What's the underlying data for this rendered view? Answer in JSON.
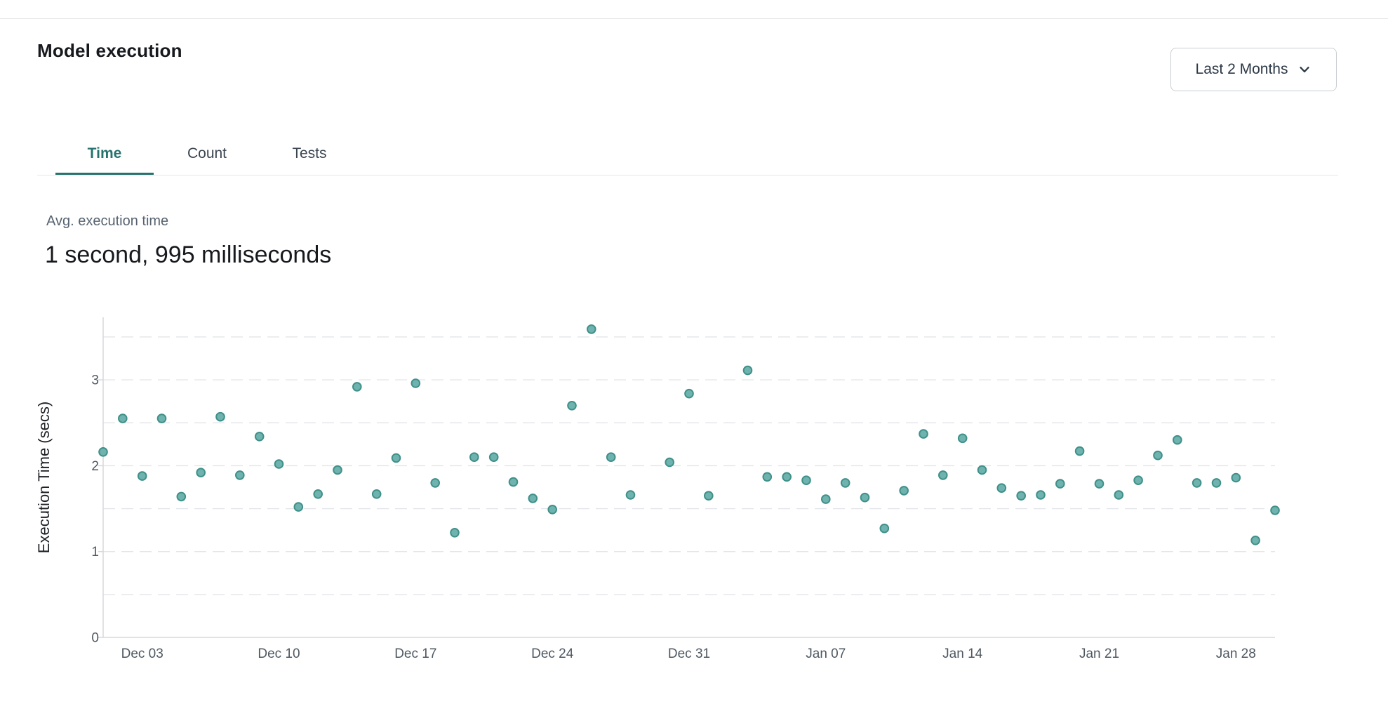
{
  "page": {
    "title": "Model execution"
  },
  "controls": {
    "range_button": {
      "label": "Last 2 Months",
      "icon": "chevron-down"
    }
  },
  "tabs": [
    {
      "label": "Time",
      "active": true
    },
    {
      "label": "Count",
      "active": false
    },
    {
      "label": "Tests",
      "active": false
    }
  ],
  "stats": {
    "label": "Avg. execution time",
    "value": "1 second, 995 milliseconds"
  },
  "colors": {
    "accent": "#26736e",
    "point_fill": "#6fb3af",
    "point_stroke": "#3f908a",
    "grid": "#e4e5ea",
    "axis": "#d7d8dc",
    "text_primary": "#16191d",
    "text_secondary": "#566370",
    "text_tick": "#4e5862",
    "text_tab": "#3a4550",
    "text_dark": "#2b3845",
    "border_light": "#e7e7e8",
    "border_btn": "#c9ced3"
  },
  "chart_data": {
    "type": "scatter",
    "title": "",
    "xlabel": "",
    "ylabel": "Execution Time (secs)",
    "ylim": [
      0,
      3.7
    ],
    "yticks": [
      0,
      1,
      2,
      3
    ],
    "grid_values": [
      0.5,
      1,
      1.5,
      2,
      2.5,
      3,
      3.5
    ],
    "grid": "dashed",
    "legend": "none",
    "x_tick_labels": [
      "Dec 03",
      "Dec 10",
      "Dec 17",
      "Dec 24",
      "Dec 31",
      "Jan 07",
      "Jan 14",
      "Jan 21",
      "Jan 28"
    ],
    "points": [
      {
        "date": "Dec 01",
        "value": 2.16
      },
      {
        "date": "Dec 02",
        "value": 2.55
      },
      {
        "date": "Dec 03",
        "value": 1.88
      },
      {
        "date": "Dec 04",
        "value": 2.55
      },
      {
        "date": "Dec 05",
        "value": 1.64
      },
      {
        "date": "Dec 06",
        "value": 1.92
      },
      {
        "date": "Dec 07",
        "value": 2.57
      },
      {
        "date": "Dec 08",
        "value": 1.89
      },
      {
        "date": "Dec 09",
        "value": 2.34
      },
      {
        "date": "Dec 10",
        "value": 2.02
      },
      {
        "date": "Dec 11",
        "value": 1.52
      },
      {
        "date": "Dec 12",
        "value": 1.67
      },
      {
        "date": "Dec 13",
        "value": 1.95
      },
      {
        "date": "Dec 14",
        "value": 2.92
      },
      {
        "date": "Dec 15",
        "value": 1.67
      },
      {
        "date": "Dec 16",
        "value": 2.09
      },
      {
        "date": "Dec 17",
        "value": 2.96
      },
      {
        "date": "Dec 18",
        "value": 1.8
      },
      {
        "date": "Dec 19",
        "value": 1.22
      },
      {
        "date": "Dec 20",
        "value": 2.1
      },
      {
        "date": "Dec 21",
        "value": 2.1
      },
      {
        "date": "Dec 22",
        "value": 1.81
      },
      {
        "date": "Dec 23",
        "value": 1.62
      },
      {
        "date": "Dec 24",
        "value": 1.49
      },
      {
        "date": "Dec 25",
        "value": 2.7
      },
      {
        "date": "Dec 26",
        "value": 3.59
      },
      {
        "date": "Dec 27",
        "value": 2.1
      },
      {
        "date": "Dec 28",
        "value": 1.66
      },
      {
        "date": "Dec 30",
        "value": 2.04
      },
      {
        "date": "Dec 31",
        "value": 2.84
      },
      {
        "date": "Jan 01",
        "value": 1.65
      },
      {
        "date": "Jan 03",
        "value": 3.11
      },
      {
        "date": "Jan 04",
        "value": 1.87
      },
      {
        "date": "Jan 05",
        "value": 1.87
      },
      {
        "date": "Jan 06",
        "value": 1.83
      },
      {
        "date": "Jan 07",
        "value": 1.61
      },
      {
        "date": "Jan 08",
        "value": 1.8
      },
      {
        "date": "Jan 09",
        "value": 1.63
      },
      {
        "date": "Jan 10",
        "value": 1.27
      },
      {
        "date": "Jan 11",
        "value": 1.71
      },
      {
        "date": "Jan 12",
        "value": 2.37
      },
      {
        "date": "Jan 13",
        "value": 1.89
      },
      {
        "date": "Jan 14",
        "value": 2.32
      },
      {
        "date": "Jan 15",
        "value": 1.95
      },
      {
        "date": "Jan 16",
        "value": 1.74
      },
      {
        "date": "Jan 17",
        "value": 1.65
      },
      {
        "date": "Jan 18",
        "value": 1.66
      },
      {
        "date": "Jan 19",
        "value": 1.79
      },
      {
        "date": "Jan 20",
        "value": 2.17
      },
      {
        "date": "Jan 21",
        "value": 1.79
      },
      {
        "date": "Jan 22",
        "value": 1.66
      },
      {
        "date": "Jan 23",
        "value": 1.83
      },
      {
        "date": "Jan 24",
        "value": 2.12
      },
      {
        "date": "Jan 25",
        "value": 2.3
      },
      {
        "date": "Jan 26",
        "value": 1.8
      },
      {
        "date": "Jan 27",
        "value": 1.8
      },
      {
        "date": "Jan 28",
        "value": 1.86
      },
      {
        "date": "Jan 29",
        "value": 1.13
      },
      {
        "date": "Jan 30",
        "value": 1.48
      }
    ]
  }
}
